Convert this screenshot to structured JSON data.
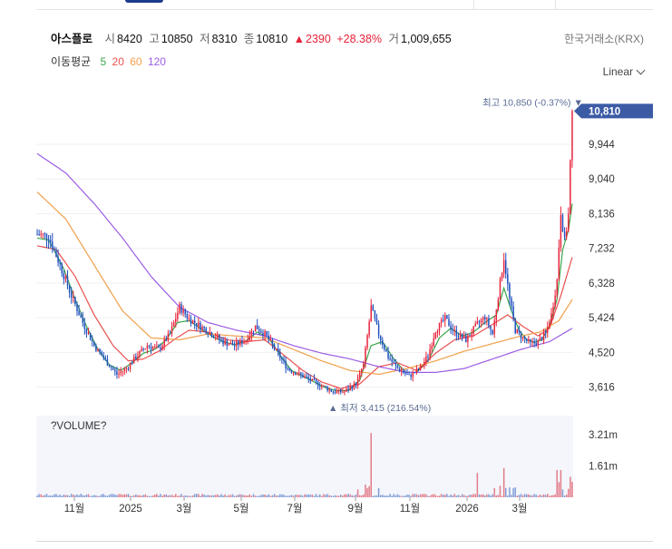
{
  "quote": {
    "name": "아스플로",
    "open_label": "시",
    "open": "8420",
    "high_label": "고",
    "high": "10850",
    "low_label": "저",
    "low": "8310",
    "close_label": "종",
    "close": "10810",
    "change_arrow": "▲",
    "change": "2390",
    "change_pct": "+28.38%",
    "volume_label": "거",
    "volume": "1,009,655",
    "exchange": "한국거래소(KRX)"
  },
  "ma_legend": {
    "title": "이동평균",
    "periods": [
      {
        "label": "5",
        "color": "#3aa64a"
      },
      {
        "label": "20",
        "color": "#e8514f"
      },
      {
        "label": "60",
        "color": "#f0a04a"
      },
      {
        "label": "120",
        "color": "#9b5de5"
      }
    ]
  },
  "scale": {
    "label": "Linear"
  },
  "chart_data": {
    "type": "candlestick",
    "title": "",
    "xlabel": "",
    "ylabel": "",
    "price_ylim": [
      3300,
      11150
    ],
    "price_ticks": [
      {
        "value": 3616,
        "label": "3,616"
      },
      {
        "value": 4520,
        "label": "4,520"
      },
      {
        "value": 5424,
        "label": "5,424"
      },
      {
        "value": 6328,
        "label": "6,328"
      },
      {
        "value": 7232,
        "label": "7,232"
      },
      {
        "value": 8136,
        "label": "8,136"
      },
      {
        "value": 9040,
        "label": "9,040"
      },
      {
        "value": 9944,
        "label": "9,944"
      }
    ],
    "current_price": {
      "value": 10810,
      "label": "10,810"
    },
    "max_annotation": {
      "text": "최고 10,850 (-0.37%) ▼",
      "value": 10850
    },
    "min_annotation": {
      "text": "▲ 최저 3,415 (216.54%)",
      "value": 3415
    },
    "x_ticks": [
      {
        "date": "2024-11",
        "label": "11월"
      },
      {
        "date": "2025-01",
        "label": "2025"
      },
      {
        "date": "2025-03",
        "label": "3월"
      },
      {
        "date": "2025-05",
        "label": "5월"
      },
      {
        "date": "2025-07",
        "label": "7월"
      },
      {
        "date": "2025-09",
        "label": "9월"
      },
      {
        "date": "2025-11",
        "label": "11월"
      },
      {
        "date": "2026-01",
        "label": "2026"
      },
      {
        "date": "2026-03",
        "label": "3월"
      }
    ],
    "up_color": "#e8223a",
    "down_color": "#1e4fbf",
    "price_path": [
      [
        0,
        7600
      ],
      [
        6,
        7550
      ],
      [
        12,
        6800
      ],
      [
        18,
        6000
      ],
      [
        24,
        5300
      ],
      [
        30,
        4700
      ],
      [
        36,
        4300
      ],
      [
        42,
        3950
      ],
      [
        47,
        4100
      ],
      [
        52,
        4400
      ],
      [
        58,
        4700
      ],
      [
        64,
        4600
      ],
      [
        70,
        5000
      ],
      [
        75,
        5700
      ],
      [
        80,
        5400
      ],
      [
        86,
        5200
      ],
      [
        92,
        5000
      ],
      [
        98,
        4800
      ],
      [
        104,
        4700
      ],
      [
        110,
        4850
      ],
      [
        115,
        5200
      ],
      [
        120,
        5000
      ],
      [
        126,
        4550
      ],
      [
        132,
        4100
      ],
      [
        138,
        3950
      ],
      [
        144,
        3800
      ],
      [
        150,
        3650
      ],
      [
        156,
        3500
      ],
      [
        162,
        3500
      ],
      [
        168,
        3700
      ],
      [
        172,
        4200
      ],
      [
        176,
        5700
      ],
      [
        180,
        5000
      ],
      [
        185,
        4400
      ],
      [
        190,
        4100
      ],
      [
        196,
        3900
      ],
      [
        202,
        4100
      ],
      [
        206,
        4450
      ],
      [
        210,
        5100
      ],
      [
        215,
        5400
      ],
      [
        220,
        5050
      ],
      [
        226,
        4850
      ],
      [
        232,
        5250
      ],
      [
        236,
        5450
      ],
      [
        240,
        5000
      ],
      [
        243,
        6000
      ],
      [
        246,
        7000
      ],
      [
        249,
        5900
      ],
      [
        252,
        5100
      ],
      [
        256,
        4900
      ],
      [
        260,
        4750
      ],
      [
        264,
        4800
      ],
      [
        268,
        5000
      ],
      [
        271,
        5500
      ],
      [
        274,
        6400
      ],
      [
        276,
        8200
      ],
      [
        278,
        7400
      ],
      [
        280,
        8100
      ],
      [
        282,
        10810
      ]
    ],
    "ma": [
      {
        "name": "5",
        "color": "#3aa64a",
        "points": [
          [
            0,
            7500
          ],
          [
            6,
            7450
          ],
          [
            14,
            6700
          ],
          [
            20,
            5900
          ],
          [
            26,
            5200
          ],
          [
            32,
            4600
          ],
          [
            38,
            4200
          ],
          [
            44,
            4050
          ],
          [
            50,
            4250
          ],
          [
            56,
            4500
          ],
          [
            62,
            4600
          ],
          [
            68,
            4850
          ],
          [
            74,
            5300
          ],
          [
            80,
            5350
          ],
          [
            86,
            5150
          ],
          [
            92,
            4950
          ],
          [
            98,
            4800
          ],
          [
            104,
            4720
          ],
          [
            110,
            4820
          ],
          [
            116,
            5050
          ],
          [
            122,
            4900
          ],
          [
            128,
            4450
          ],
          [
            134,
            4050
          ],
          [
            140,
            3900
          ],
          [
            146,
            3750
          ],
          [
            152,
            3600
          ],
          [
            158,
            3520
          ],
          [
            164,
            3530
          ],
          [
            170,
            3800
          ],
          [
            176,
            4700
          ],
          [
            182,
            4800
          ],
          [
            188,
            4350
          ],
          [
            194,
            4000
          ],
          [
            200,
            4000
          ],
          [
            206,
            4300
          ],
          [
            212,
            4900
          ],
          [
            218,
            5150
          ],
          [
            224,
            4950
          ],
          [
            230,
            5050
          ],
          [
            236,
            5300
          ],
          [
            242,
            5500
          ],
          [
            246,
            6200
          ],
          [
            250,
            5600
          ],
          [
            254,
            5100
          ],
          [
            258,
            4850
          ],
          [
            262,
            4780
          ],
          [
            266,
            4850
          ],
          [
            270,
            5200
          ],
          [
            274,
            5900
          ],
          [
            277,
            7200
          ],
          [
            280,
            7700
          ],
          [
            282,
            8400
          ]
        ]
      },
      {
        "name": "20",
        "color": "#e8514f",
        "points": [
          [
            0,
            7300
          ],
          [
            10,
            7200
          ],
          [
            20,
            6500
          ],
          [
            30,
            5500
          ],
          [
            40,
            4700
          ],
          [
            48,
            4300
          ],
          [
            56,
            4350
          ],
          [
            64,
            4550
          ],
          [
            72,
            4850
          ],
          [
            80,
            5100
          ],
          [
            90,
            5050
          ],
          [
            100,
            4850
          ],
          [
            110,
            4800
          ],
          [
            120,
            4850
          ],
          [
            130,
            4450
          ],
          [
            140,
            4050
          ],
          [
            150,
            3750
          ],
          [
            160,
            3580
          ],
          [
            170,
            3700
          ],
          [
            180,
            4150
          ],
          [
            190,
            4250
          ],
          [
            200,
            4050
          ],
          [
            210,
            4500
          ],
          [
            220,
            4850
          ],
          [
            230,
            4950
          ],
          [
            240,
            5250
          ],
          [
            248,
            5500
          ],
          [
            256,
            5200
          ],
          [
            264,
            4950
          ],
          [
            270,
            5150
          ],
          [
            276,
            6000
          ],
          [
            282,
            7000
          ]
        ]
      },
      {
        "name": "60",
        "color": "#f0a04a",
        "points": [
          [
            0,
            8700
          ],
          [
            15,
            8000
          ],
          [
            30,
            6800
          ],
          [
            45,
            5600
          ],
          [
            60,
            4900
          ],
          [
            75,
            4850
          ],
          [
            90,
            5000
          ],
          [
            105,
            4950
          ],
          [
            120,
            4900
          ],
          [
            135,
            4600
          ],
          [
            150,
            4300
          ],
          [
            165,
            4050
          ],
          [
            180,
            3950
          ],
          [
            195,
            4100
          ],
          [
            210,
            4300
          ],
          [
            225,
            4550
          ],
          [
            240,
            4750
          ],
          [
            255,
            4950
          ],
          [
            265,
            5050
          ],
          [
            275,
            5350
          ],
          [
            282,
            5900
          ]
        ]
      },
      {
        "name": "120",
        "color": "#9b5de5",
        "points": [
          [
            0,
            9700
          ],
          [
            15,
            9200
          ],
          [
            30,
            8400
          ],
          [
            45,
            7500
          ],
          [
            60,
            6500
          ],
          [
            75,
            5700
          ],
          [
            90,
            5300
          ],
          [
            105,
            5100
          ],
          [
            120,
            4950
          ],
          [
            135,
            4700
          ],
          [
            150,
            4500
          ],
          [
            165,
            4350
          ],
          [
            180,
            4150
          ],
          [
            195,
            4000
          ],
          [
            210,
            4000
          ],
          [
            225,
            4100
          ],
          [
            240,
            4350
          ],
          [
            255,
            4600
          ],
          [
            270,
            4800
          ],
          [
            282,
            5150
          ]
        ]
      }
    ],
    "volume_panel": {
      "title": "?VOLUME?",
      "ylim": [
        0,
        4200000
      ],
      "ticks": [
        {
          "value": 1610000,
          "label": "1.61m"
        },
        {
          "value": 3210000,
          "label": "3.21m"
        }
      ]
    }
  }
}
